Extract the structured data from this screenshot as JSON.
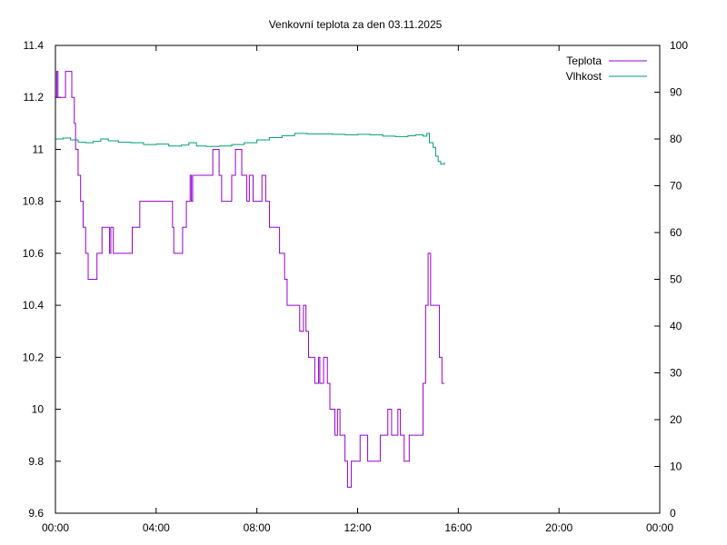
{
  "chart_data": {
    "type": "line",
    "title": "Venkovní teplota za den 03.11.2025",
    "xlabel": "",
    "ylabel": "",
    "y2label": "",
    "x_ticks": [
      "00:00",
      "04:00",
      "08:00",
      "12:00",
      "16:00",
      "20:00",
      "00:00"
    ],
    "xlim_hours": [
      0,
      24
    ],
    "ylim": [
      9.6,
      11.4
    ],
    "y_ticks": [
      "9.6",
      "9.8",
      "10",
      "10.2",
      "10.4",
      "10.6",
      "10.8",
      "11",
      "11.2",
      "11.4"
    ],
    "y2lim": [
      0,
      100
    ],
    "y2_ticks": [
      "0",
      "10",
      "20",
      "30",
      "40",
      "50",
      "60",
      "70",
      "80",
      "90",
      "100"
    ],
    "legend_position": "top-right",
    "grid": false,
    "series": [
      {
        "name": "Teplota",
        "axis": "left",
        "color": "#9400d3",
        "points": [
          [
            0.0,
            11.2
          ],
          [
            0.05,
            11.3
          ],
          [
            0.1,
            11.2
          ],
          [
            0.35,
            11.2
          ],
          [
            0.4,
            11.3
          ],
          [
            0.6,
            11.3
          ],
          [
            0.65,
            11.2
          ],
          [
            0.75,
            11.1
          ],
          [
            0.8,
            11.0
          ],
          [
            0.9,
            10.9
          ],
          [
            1.0,
            10.8
          ],
          [
            1.1,
            10.7
          ],
          [
            1.2,
            10.6
          ],
          [
            1.3,
            10.5
          ],
          [
            1.6,
            10.5
          ],
          [
            1.65,
            10.6
          ],
          [
            1.8,
            10.6
          ],
          [
            1.85,
            10.7
          ],
          [
            2.1,
            10.7
          ],
          [
            2.15,
            10.6
          ],
          [
            2.2,
            10.7
          ],
          [
            2.3,
            10.6
          ],
          [
            3.0,
            10.6
          ],
          [
            3.05,
            10.7
          ],
          [
            3.3,
            10.7
          ],
          [
            3.35,
            10.8
          ],
          [
            4.6,
            10.8
          ],
          [
            4.65,
            10.7
          ],
          [
            4.7,
            10.6
          ],
          [
            5.0,
            10.6
          ],
          [
            5.05,
            10.7
          ],
          [
            5.2,
            10.8
          ],
          [
            5.35,
            10.9
          ],
          [
            5.4,
            10.8
          ],
          [
            5.45,
            10.9
          ],
          [
            6.2,
            10.9
          ],
          [
            6.25,
            11.0
          ],
          [
            6.45,
            11.0
          ],
          [
            6.5,
            10.9
          ],
          [
            6.6,
            10.8
          ],
          [
            6.9,
            10.8
          ],
          [
            7.0,
            10.9
          ],
          [
            7.15,
            11.0
          ],
          [
            7.35,
            11.0
          ],
          [
            7.4,
            10.9
          ],
          [
            7.55,
            10.9
          ],
          [
            7.6,
            10.8
          ],
          [
            7.7,
            10.9
          ],
          [
            7.85,
            10.8
          ],
          [
            8.1,
            10.8
          ],
          [
            8.2,
            10.9
          ],
          [
            8.35,
            10.8
          ],
          [
            8.5,
            10.7
          ],
          [
            8.8,
            10.7
          ],
          [
            8.9,
            10.6
          ],
          [
            9.1,
            10.5
          ],
          [
            9.2,
            10.4
          ],
          [
            9.6,
            10.4
          ],
          [
            9.7,
            10.3
          ],
          [
            9.85,
            10.4
          ],
          [
            9.95,
            10.3
          ],
          [
            10.05,
            10.2
          ],
          [
            10.3,
            10.1
          ],
          [
            10.45,
            10.2
          ],
          [
            10.5,
            10.1
          ],
          [
            10.65,
            10.2
          ],
          [
            10.8,
            10.1
          ],
          [
            10.9,
            10.0
          ],
          [
            11.1,
            9.9
          ],
          [
            11.2,
            10.0
          ],
          [
            11.3,
            9.9
          ],
          [
            11.5,
            9.8
          ],
          [
            11.6,
            9.7
          ],
          [
            11.75,
            9.8
          ],
          [
            12.0,
            9.8
          ],
          [
            12.1,
            9.9
          ],
          [
            12.3,
            9.9
          ],
          [
            12.4,
            9.8
          ],
          [
            12.8,
            9.8
          ],
          [
            12.9,
            9.9
          ],
          [
            13.2,
            10.0
          ],
          [
            13.35,
            9.9
          ],
          [
            13.5,
            9.9
          ],
          [
            13.6,
            10.0
          ],
          [
            13.7,
            9.9
          ],
          [
            13.85,
            9.8
          ],
          [
            14.05,
            9.9
          ],
          [
            14.5,
            9.9
          ],
          [
            14.6,
            10.1
          ],
          [
            14.7,
            10.4
          ],
          [
            14.8,
            10.6
          ],
          [
            14.9,
            10.4
          ],
          [
            15.15,
            10.4
          ],
          [
            15.25,
            10.2
          ],
          [
            15.35,
            10.1
          ],
          [
            15.45,
            10.1
          ]
        ]
      },
      {
        "name": "Vlhkost",
        "axis": "right",
        "color": "#009e73",
        "points": [
          [
            0.0,
            80
          ],
          [
            0.3,
            80.2
          ],
          [
            0.6,
            79.8
          ],
          [
            0.9,
            79.3
          ],
          [
            1.2,
            79.2
          ],
          [
            1.5,
            79.5
          ],
          [
            1.8,
            80
          ],
          [
            2.1,
            79.6
          ],
          [
            2.5,
            79.3
          ],
          [
            3.0,
            79.2
          ],
          [
            3.5,
            78.8
          ],
          [
            4.0,
            78.9
          ],
          [
            4.5,
            78.5
          ],
          [
            5.0,
            78.7
          ],
          [
            5.3,
            79.2
          ],
          [
            5.6,
            78.5
          ],
          [
            6.0,
            78.4
          ],
          [
            6.5,
            78.5
          ],
          [
            7.0,
            78.8
          ],
          [
            7.5,
            79.2
          ],
          [
            8.0,
            79.8
          ],
          [
            8.5,
            80.3
          ],
          [
            9.0,
            80.7
          ],
          [
            9.5,
            81.2
          ],
          [
            10.0,
            81.1
          ],
          [
            10.5,
            81.1
          ],
          [
            11.0,
            81.0
          ],
          [
            11.5,
            80.9
          ],
          [
            12.0,
            81.0
          ],
          [
            12.5,
            80.9
          ],
          [
            13.0,
            80.6
          ],
          [
            13.5,
            80.5
          ],
          [
            14.0,
            80.7
          ],
          [
            14.3,
            80.9
          ],
          [
            14.6,
            80.6
          ],
          [
            14.75,
            81.2
          ],
          [
            14.85,
            79.2
          ],
          [
            15.0,
            78.2
          ],
          [
            15.1,
            76.3
          ],
          [
            15.2,
            75.2
          ],
          [
            15.3,
            74.6
          ],
          [
            15.45,
            75.0
          ]
        ]
      }
    ]
  }
}
